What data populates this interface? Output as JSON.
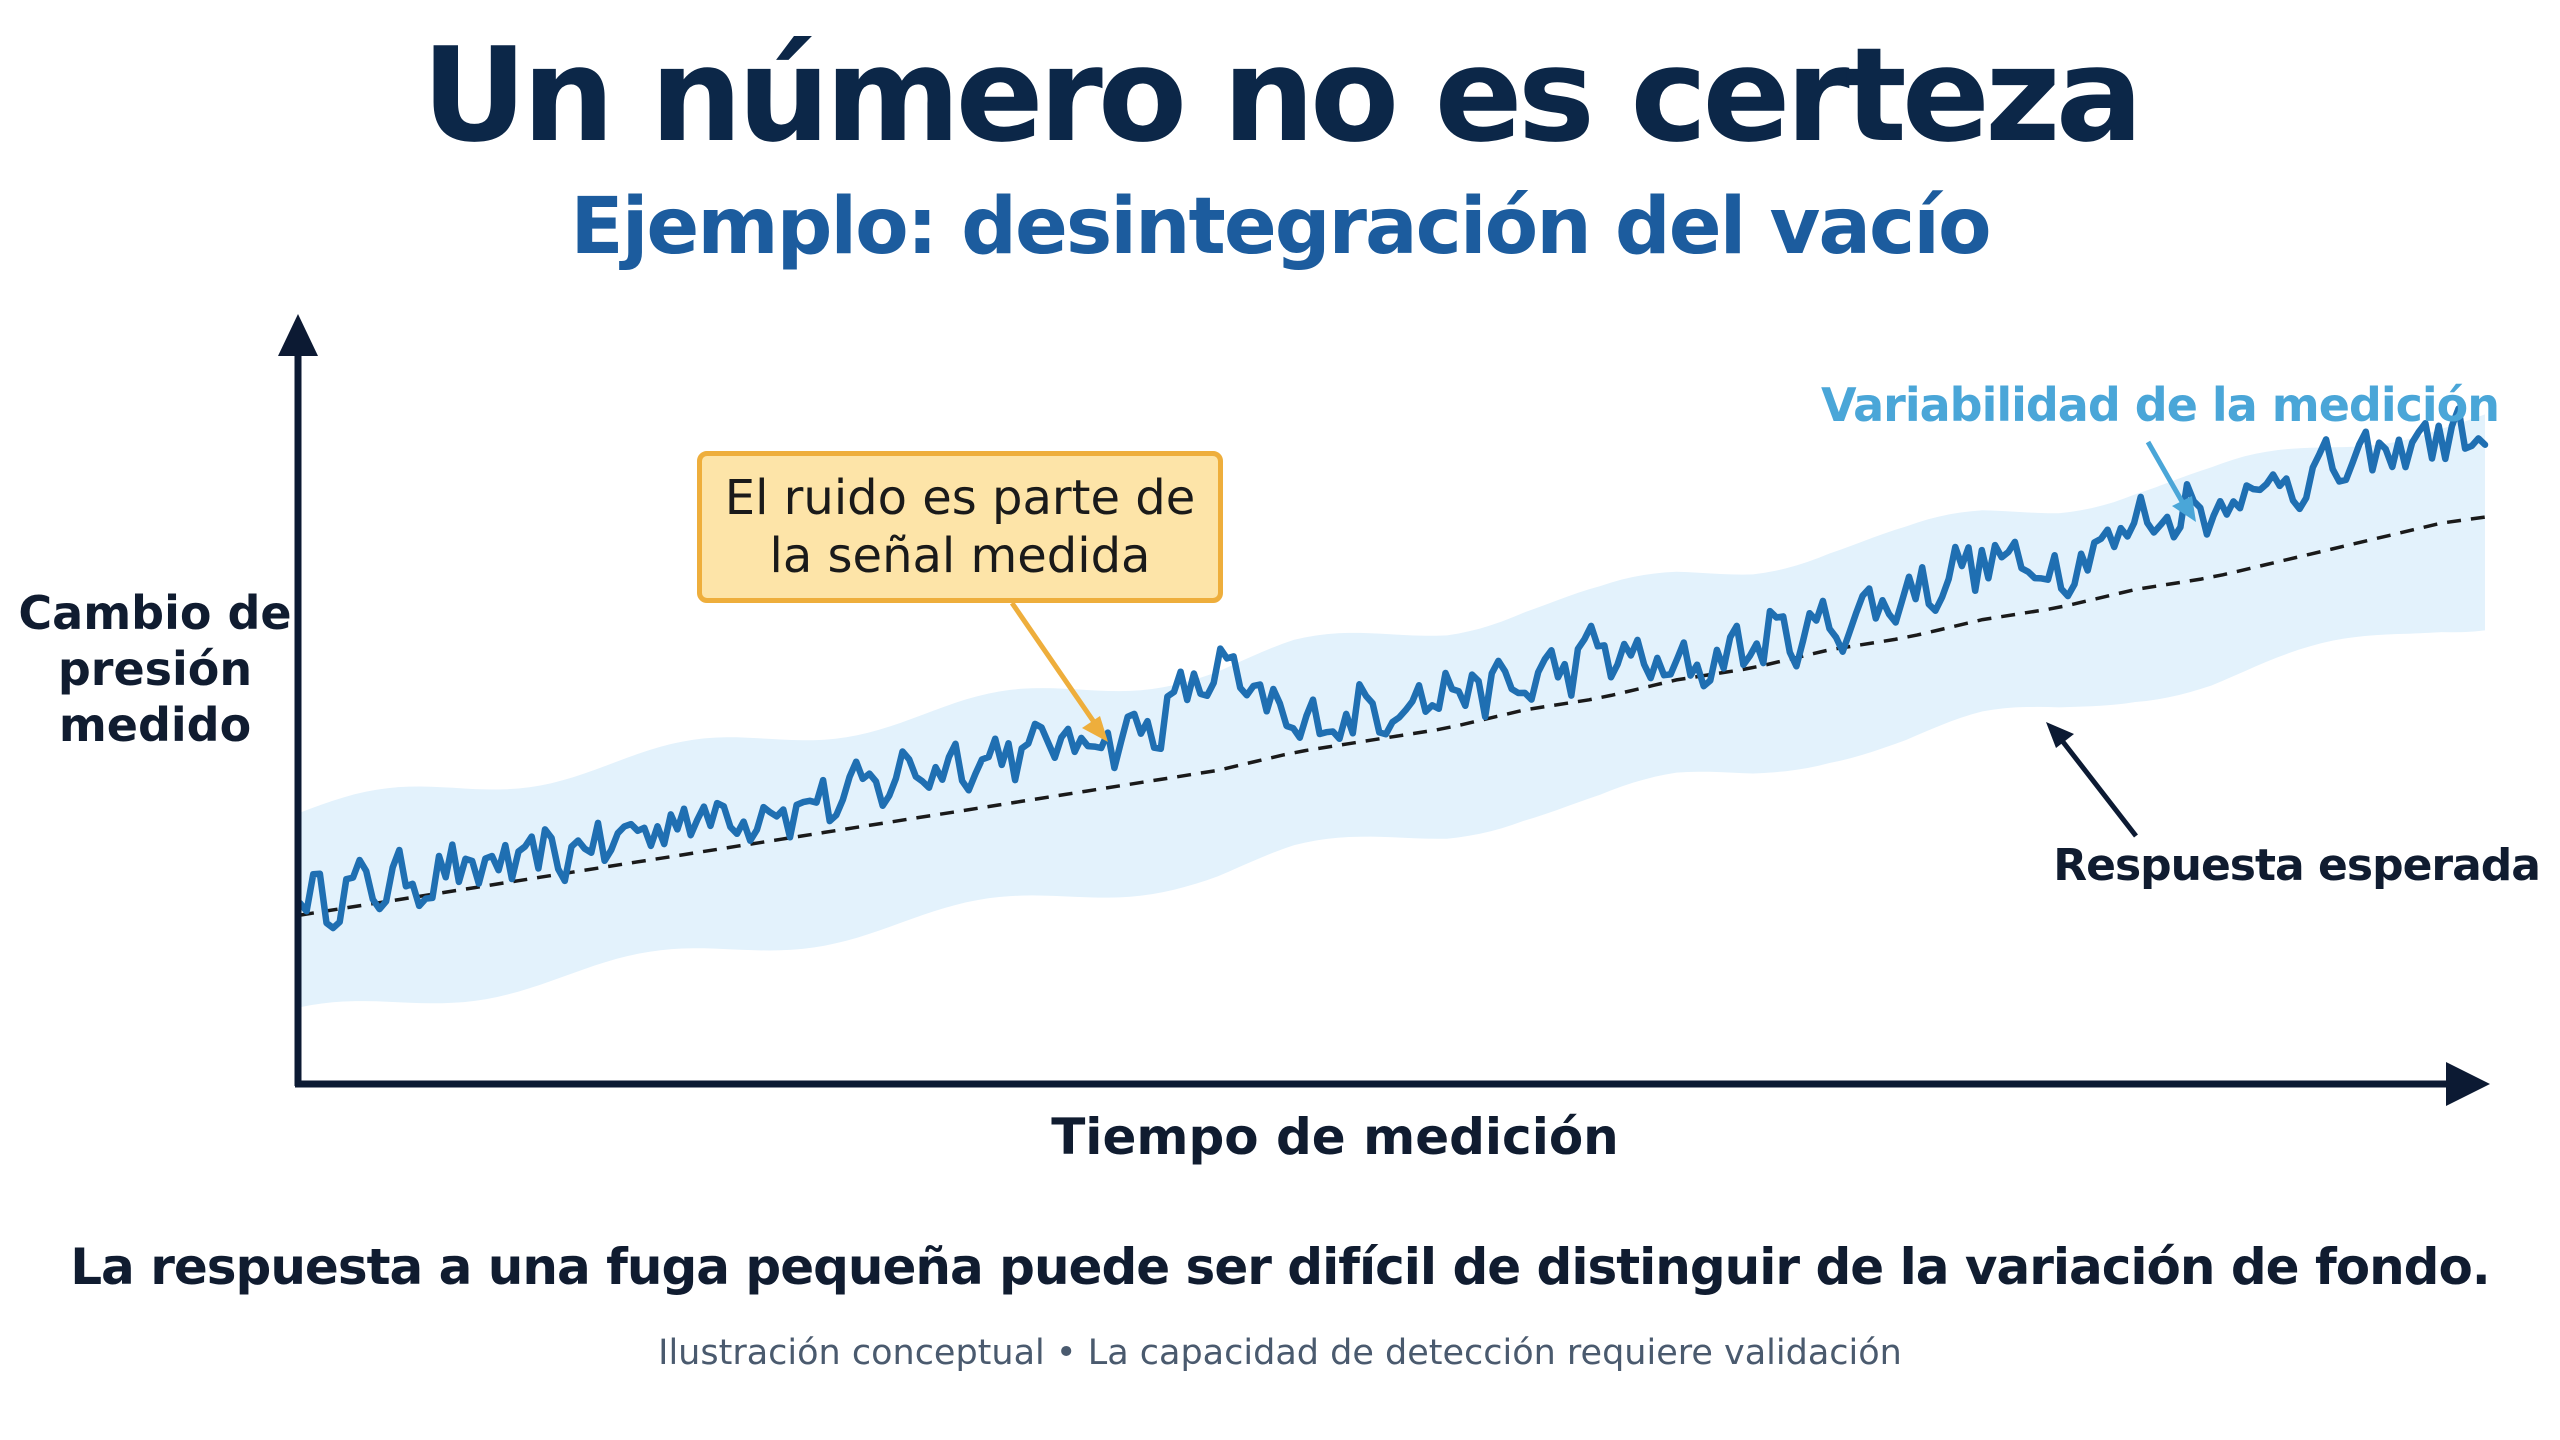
{
  "header": {
    "title": "Un número no es certeza",
    "subtitle": "Ejemplo: desintegración del vacío"
  },
  "chart_data": {
    "type": "line",
    "xlabel": "Tiempo de medición",
    "ylabel": "Cambio de presión medido",
    "grid": false,
    "legend": "none",
    "x": [
      0,
      0.035,
      0.07,
      0.105,
      0.14,
      0.175,
      0.21,
      0.245,
      0.28,
      0.315,
      0.35,
      0.385,
      0.42,
      0.455,
      0.49,
      0.525,
      0.56,
      0.595,
      0.63,
      0.665,
      0.7,
      0.735,
      0.77,
      0.805,
      0.84,
      0.875,
      0.91,
      0.945,
      0.98,
      1.0
    ],
    "series": [
      {
        "values": [
          0.3,
          0.33,
          0.35,
          0.37,
          0.4,
          0.44,
          0.45,
          0.47,
          0.52,
          0.54,
          0.57,
          0.58,
          0.69,
          0.59,
          0.62,
          0.65,
          0.66,
          0.72,
          0.68,
          0.73,
          0.76,
          0.81,
          0.87,
          0.85,
          0.93,
          0.96,
          1.0,
          1.03,
          1.08,
          1.06
        ],
        "color": "#1f6fb2"
      },
      {
        "name": "Respuesta esperada",
        "values": [
          0.28,
          0.3,
          0.32,
          0.34,
          0.36,
          0.38,
          0.4,
          0.42,
          0.44,
          0.46,
          0.48,
          0.5,
          0.52,
          0.55,
          0.57,
          0.59,
          0.62,
          0.64,
          0.67,
          0.69,
          0.72,
          0.74,
          0.77,
          0.79,
          0.82,
          0.84,
          0.87,
          0.9,
          0.93,
          0.94
        ],
        "style": "dashed",
        "color": "#1a1a1a"
      }
    ],
    "band": {
      "label": "Variabilidad de la medición",
      "half_width": 0.17,
      "color": "#e3f2fc"
    },
    "annotations": [
      {
        "text": "El ruido es parte de la señal medida",
        "color": "#fde4a8"
      }
    ],
    "xlim": [
      0,
      1
    ],
    "ylim": [
      0,
      1.3
    ]
  },
  "caption": "La respuesta a una fuga pequeña puede ser difícil de distinguir de la variación de fondo.",
  "footnote": {
    "left": "Ilustración conceptual",
    "separator": "•",
    "right": "La capacidad de detección requiere validación"
  },
  "colors": {
    "title": "#0c2748",
    "subtitle": "#1c5c9e",
    "axis": "#0c1a33",
    "signal": "#1f6fb2",
    "band": "#e3f2fc",
    "band_label": "#4aa6d8",
    "callout_border": "#eeae3c"
  }
}
